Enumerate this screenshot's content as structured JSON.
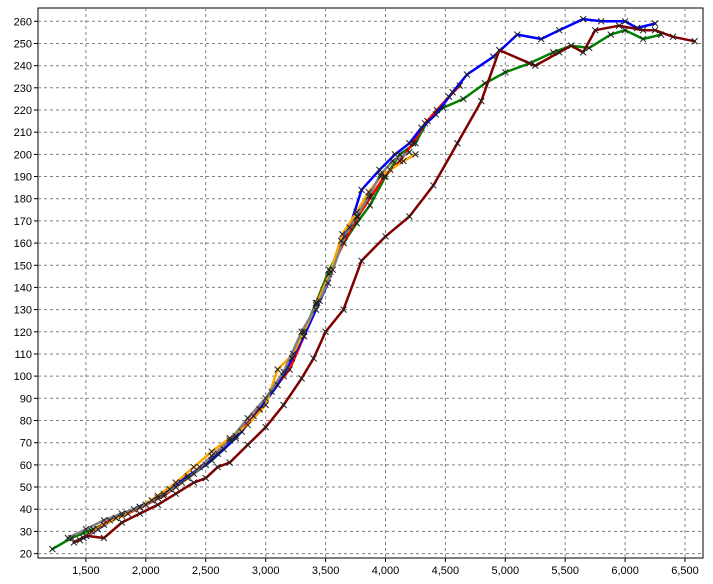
{
  "chart_data": {
    "type": "line",
    "title": "",
    "xlabel": "",
    "ylabel": "",
    "xlim": [
      1100,
      6650
    ],
    "ylim": [
      18,
      266
    ],
    "grid": true,
    "legend": "none",
    "x_ticks": [
      1500,
      2000,
      2500,
      3000,
      3500,
      4000,
      4500,
      5000,
      5500,
      6000,
      6500
    ],
    "x_tick_labels": [
      "1,500",
      "2,000",
      "2,500",
      "3,000",
      "3,500",
      "4,000",
      "4,500",
      "5,000",
      "5,500",
      "6,000",
      "6,500"
    ],
    "y_ticks": [
      20,
      30,
      40,
      50,
      60,
      70,
      80,
      90,
      100,
      110,
      120,
      130,
      140,
      150,
      160,
      170,
      180,
      190,
      200,
      210,
      220,
      230,
      240,
      250,
      260
    ],
    "y_tick_labels": [
      "20",
      "30",
      "40",
      "50",
      "60",
      "70",
      "80",
      "90",
      "100",
      "110",
      "120",
      "130",
      "140",
      "150",
      "160",
      "170",
      "180",
      "190",
      "200",
      "210",
      "220",
      "230",
      "240",
      "250",
      "260"
    ],
    "series": [
      {
        "color": "#008000",
        "points": [
          [
            1220,
            22
          ],
          [
            1380,
            27
          ],
          [
            1560,
            31
          ],
          [
            1750,
            36
          ],
          [
            1950,
            41
          ],
          [
            2150,
            47
          ],
          [
            2350,
            54
          ],
          [
            2550,
            62
          ],
          [
            2750,
            72
          ],
          [
            2950,
            85
          ],
          [
            3150,
            100
          ],
          [
            3320,
            120
          ],
          [
            3420,
            133
          ],
          [
            3530,
            148
          ],
          [
            3650,
            160
          ],
          [
            3760,
            169
          ],
          [
            3870,
            177
          ],
          [
            4000,
            190
          ],
          [
            4120,
            200
          ],
          [
            4250,
            205
          ],
          [
            4350,
            215
          ],
          [
            4480,
            221
          ],
          [
            4650,
            225
          ],
          [
            4830,
            232
          ],
          [
            5000,
            237
          ],
          [
            5200,
            241
          ],
          [
            5400,
            246
          ],
          [
            5550,
            249
          ],
          [
            5700,
            248
          ],
          [
            5880,
            254
          ],
          [
            6000,
            256
          ],
          [
            6150,
            252
          ],
          [
            6300,
            254
          ]
        ]
      },
      {
        "color": "#ff0000",
        "points": [
          [
            1450,
            26
          ],
          [
            1550,
            30
          ],
          [
            1700,
            35
          ],
          [
            1850,
            38
          ],
          [
            2000,
            42
          ],
          [
            2150,
            46
          ],
          [
            2300,
            52
          ],
          [
            2450,
            59
          ],
          [
            2600,
            65
          ],
          [
            2750,
            73
          ],
          [
            2900,
            82
          ],
          [
            3050,
            93
          ],
          [
            3200,
            103
          ],
          [
            3320,
            118
          ],
          [
            3420,
            132
          ],
          [
            3530,
            146
          ],
          [
            3650,
            160
          ],
          [
            3770,
            172
          ],
          [
            3880,
            181
          ],
          [
            3990,
            190
          ],
          [
            4120,
            197
          ],
          [
            4230,
            205
          ],
          [
            4330,
            214
          ],
          [
            4430,
            220
          ],
          [
            4530,
            226
          ],
          [
            4620,
            231
          ]
        ]
      },
      {
        "color": "#0000ff",
        "points": [
          [
            1480,
            27
          ],
          [
            1600,
            31
          ],
          [
            1750,
            36
          ],
          [
            1900,
            40
          ],
          [
            2050,
            44
          ],
          [
            2200,
            49
          ],
          [
            2350,
            55
          ],
          [
            2500,
            60
          ],
          [
            2650,
            67
          ],
          [
            2800,
            75
          ],
          [
            2950,
            85
          ],
          [
            3100,
            96
          ],
          [
            3220,
            108
          ],
          [
            3320,
            118
          ],
          [
            3420,
            130
          ],
          [
            3520,
            142
          ],
          [
            3630,
            161
          ],
          [
            3700,
            167
          ],
          [
            3800,
            184
          ],
          [
            3950,
            193
          ],
          [
            4080,
            200
          ],
          [
            4200,
            205
          ],
          [
            4300,
            212
          ],
          [
            4420,
            218
          ],
          [
            4560,
            228
          ],
          [
            4680,
            236
          ],
          [
            4900,
            244
          ],
          [
            5100,
            254
          ],
          [
            5300,
            252
          ],
          [
            5450,
            256
          ],
          [
            5650,
            261
          ],
          [
            5800,
            260
          ],
          [
            6000,
            260
          ],
          [
            6100,
            257
          ],
          [
            6250,
            259
          ]
        ]
      },
      {
        "color": "#ffa500",
        "points": [
          [
            1500,
            28
          ],
          [
            1650,
            33
          ],
          [
            1800,
            37
          ],
          [
            1950,
            41
          ],
          [
            2100,
            46
          ],
          [
            2250,
            52
          ],
          [
            2400,
            59
          ],
          [
            2550,
            66
          ],
          [
            2700,
            72
          ],
          [
            2850,
            78
          ],
          [
            3000,
            87
          ],
          [
            3100,
            103
          ],
          [
            3230,
            110
          ],
          [
            3320,
            120
          ],
          [
            3430,
            133
          ],
          [
            3540,
            147
          ],
          [
            3640,
            164
          ],
          [
            3760,
            174
          ],
          [
            3860,
            183
          ],
          [
            3960,
            190
          ],
          [
            4040,
            193
          ],
          [
            4150,
            197
          ],
          [
            4250,
            200
          ]
        ]
      },
      {
        "color": "#808080",
        "points": [
          [
            1350,
            27
          ],
          [
            1500,
            31
          ],
          [
            1650,
            35
          ],
          [
            1800,
            38
          ],
          [
            1950,
            41
          ],
          [
            2100,
            45
          ],
          [
            2250,
            50
          ],
          [
            2400,
            56
          ],
          [
            2550,
            64
          ],
          [
            2700,
            71
          ],
          [
            2850,
            81
          ],
          [
            3000,
            90
          ],
          [
            3150,
            102
          ],
          [
            3300,
            120
          ],
          [
            3450,
            134
          ],
          [
            3560,
            148
          ],
          [
            3660,
            163
          ],
          [
            3760,
            172
          ],
          [
            3860,
            181
          ],
          [
            3960,
            191
          ],
          [
            4060,
            197
          ],
          [
            4200,
            201
          ]
        ]
      },
      {
        "color": "#800000",
        "points": [
          [
            1400,
            25
          ],
          [
            1500,
            28
          ],
          [
            1650,
            27
          ],
          [
            1800,
            34
          ],
          [
            1950,
            38
          ],
          [
            2100,
            42
          ],
          [
            2250,
            47
          ],
          [
            2400,
            52
          ],
          [
            2500,
            54
          ],
          [
            2600,
            59
          ],
          [
            2700,
            61
          ],
          [
            2850,
            69
          ],
          [
            3000,
            77
          ],
          [
            3150,
            87
          ],
          [
            3300,
            99
          ],
          [
            3400,
            108
          ],
          [
            3500,
            120
          ],
          [
            3650,
            130
          ],
          [
            3800,
            152
          ],
          [
            4000,
            163
          ],
          [
            4200,
            172
          ],
          [
            4400,
            186
          ],
          [
            4600,
            205
          ],
          [
            4800,
            224
          ],
          [
            4950,
            247
          ],
          [
            5250,
            240
          ],
          [
            5450,
            246
          ],
          [
            5550,
            249
          ],
          [
            5650,
            246
          ],
          [
            5750,
            256
          ],
          [
            5950,
            258
          ],
          [
            6150,
            256
          ],
          [
            6250,
            256
          ],
          [
            6400,
            253
          ],
          [
            6580,
            251
          ]
        ]
      }
    ]
  }
}
